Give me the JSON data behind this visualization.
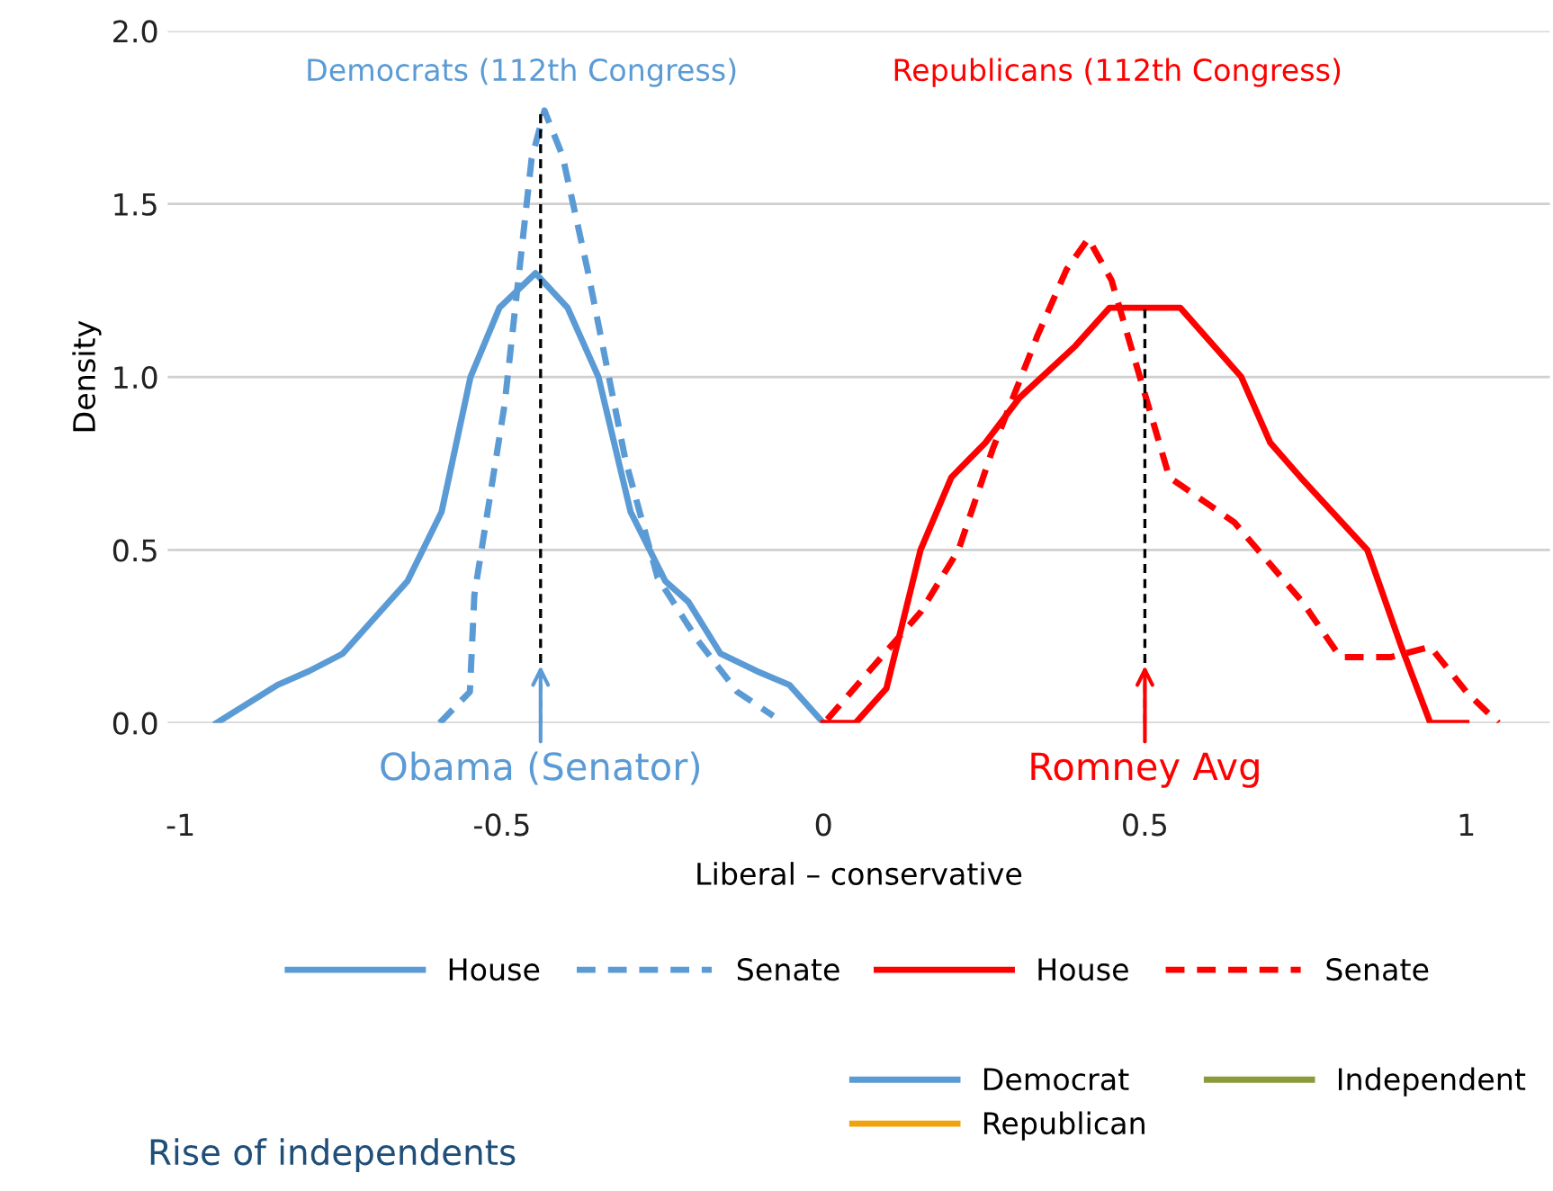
{
  "chart_data": [
    {
      "type": "line",
      "xlabel": "Liberal – conservative",
      "ylabel": "Density",
      "xlim": [
        -1.02,
        1.13
      ],
      "ylim": [
        0,
        2.0
      ],
      "xticks": [
        {
          "value": -1,
          "label": "-1"
        },
        {
          "value": -0.5,
          "label": "-0.5"
        },
        0,
        0.5,
        1
      ],
      "yticks": [
        {
          "value": 0,
          "label": "0.0"
        },
        0.5,
        {
          "value": 1,
          "label": "1.0"
        },
        1.5,
        {
          "value": 2,
          "label": "2.0"
        }
      ],
      "grid": "y",
      "legend": "bottom",
      "marker": "none",
      "series": [
        {
          "name": "House",
          "color": "#5b9bd5",
          "line_style": "solid",
          "x": [
            -0.944,
            -0.849,
            -0.8,
            -0.748,
            -0.647,
            -0.594,
            -0.549,
            -0.504,
            -0.448,
            -0.398,
            -0.35,
            -0.3,
            -0.246,
            -0.21,
            -0.16,
            -0.104,
            -0.053,
            0
          ],
          "values": [
            0,
            0.11,
            0.15,
            0.2,
            0.41,
            0.61,
            1.0,
            1.2,
            1.3,
            1.2,
            1.0,
            0.61,
            0.41,
            0.35,
            0.2,
            0.15,
            0.11,
            0
          ]
        },
        {
          "name": "Senate",
          "color": "#5b9bd5",
          "line_style": "dashed",
          "x": [
            -0.597,
            -0.55,
            -0.543,
            -0.496,
            -0.454,
            -0.434,
            -0.406,
            -0.367,
            -0.308,
            -0.258,
            -0.196,
            -0.134,
            -0.078
          ],
          "values": [
            0,
            0.09,
            0.37,
            0.92,
            1.63,
            1.77,
            1.64,
            1.31,
            0.76,
            0.42,
            0.24,
            0.09,
            0.02
          ]
        },
        {
          "name": "House",
          "color": "#ff0000",
          "line_style": "solid",
          "x": [
            0,
            0.05,
            0.098,
            0.151,
            0.199,
            0.252,
            0.305,
            0.392,
            0.445,
            0.555,
            0.65,
            0.695,
            0.742,
            0.846,
            0.899,
            0.944,
            1.0
          ],
          "values": [
            0,
            0,
            0.1,
            0.5,
            0.71,
            0.81,
            0.94,
            1.09,
            1.2,
            1.2,
            1.0,
            0.81,
            0.71,
            0.5,
            0.22,
            0,
            0
          ]
        },
        {
          "name": "Senate",
          "color": "#ff0000",
          "line_style": "dashed",
          "x": [
            0.006,
            0.104,
            0.151,
            0.21,
            0.263,
            0.333,
            0.378,
            0.412,
            0.448,
            0.538,
            0.639,
            0.745,
            0.804,
            0.882,
            0.944,
            1.0,
            1.05
          ],
          "values": [
            0.01,
            0.22,
            0.32,
            0.5,
            0.79,
            1.12,
            1.31,
            1.4,
            1.28,
            0.71,
            0.58,
            0.35,
            0.19,
            0.19,
            0.22,
            0.09,
            0
          ]
        },
        {
          "color": "#000000",
          "line_style": "dashed",
          "x": [
            -0.44,
            -0.44
          ],
          "values": [
            0,
            1.77
          ]
        },
        {
          "color": "#000000",
          "line_style": "dashed",
          "x": [
            0.5,
            0.5
          ],
          "values": [
            0,
            1.2
          ]
        }
      ],
      "annotations": [
        "Democrats (112th Congress)",
        "Republicans (112th Congress)",
        {
          "text": "Obama (Senator)",
          "x": -0.44,
          "y": 0.18
        },
        {
          "text": "Romney Avg",
          "x": 0.5,
          "y": 0.18
        }
      ]
    },
    {
      "type": "other",
      "title": "Rise of independents",
      "legend": "right",
      "series": [
        {
          "name": "Democrat",
          "color": "#5b9bd5"
        },
        {
          "name": "Republican",
          "color": "#f0a30a"
        },
        {
          "name": "Independent",
          "color": "#8c9a3c"
        }
      ]
    }
  ]
}
